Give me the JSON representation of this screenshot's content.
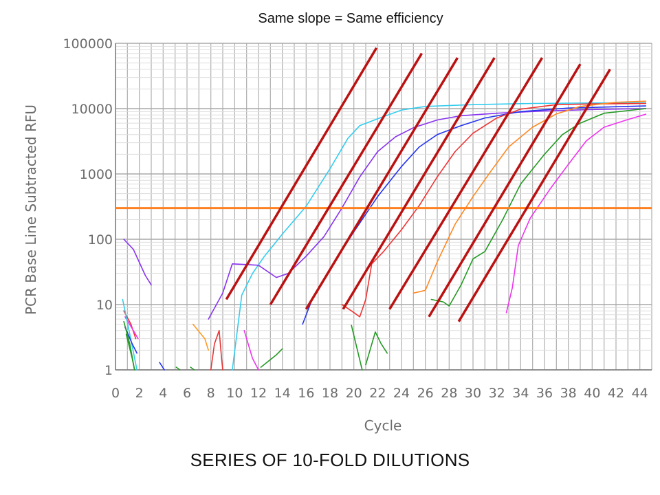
{
  "slide": {
    "title": "Same slope = Same efficiency",
    "caption": "SERIES OF 10-FOLD DILUTIONS"
  },
  "chart_data": {
    "type": "line",
    "title": "Same slope = Same efficiency",
    "xlabel": "Cycle",
    "ylabel": "PCR Base Line Subtracted RFU",
    "xlim": [
      0,
      45
    ],
    "ylim": [
      1,
      100000
    ],
    "yscale": "log",
    "grid": true,
    "x_ticks": [
      0,
      2,
      4,
      6,
      8,
      10,
      12,
      14,
      16,
      18,
      20,
      22,
      24,
      26,
      28,
      30,
      32,
      34,
      36,
      38,
      40,
      42,
      44
    ],
    "x_tick_labels": [
      "0",
      "2",
      "4",
      "6",
      "8",
      "10",
      "12",
      "14",
      "16",
      "18",
      "20",
      "22",
      "24",
      "26",
      "28",
      "30",
      "32",
      "34",
      "36",
      "38",
      "40",
      "42",
      "44"
    ],
    "y_ticks": [
      1,
      10,
      100,
      1000,
      10000,
      100000
    ],
    "y_tick_labels": [
      "1",
      "10",
      "100",
      "1000",
      "10000",
      "100000"
    ],
    "threshold": {
      "y": 300,
      "color": "#ff8020"
    },
    "series": [
      {
        "color": "#33ccee",
        "points": [
          [
            9.8,
            1
          ],
          [
            10.6,
            14
          ],
          [
            11.5,
            30
          ],
          [
            12.5,
            55
          ],
          [
            14,
            120
          ],
          [
            16,
            320
          ],
          [
            18,
            1200
          ],
          [
            19.5,
            3500
          ],
          [
            20.5,
            5500
          ],
          [
            22,
            7000
          ],
          [
            24,
            9500
          ],
          [
            26,
            10800
          ],
          [
            30,
            11500
          ],
          [
            35,
            12000
          ],
          [
            40,
            12200
          ],
          [
            44.5,
            12300
          ]
        ]
      },
      {
        "color": "#8833ee",
        "points": [
          [
            7.8,
            6
          ],
          [
            9,
            15
          ],
          [
            9.8,
            42
          ],
          [
            11,
            41
          ],
          [
            12,
            40
          ],
          [
            13.5,
            26
          ],
          [
            14.5,
            30
          ],
          [
            16,
            55
          ],
          [
            17.5,
            110
          ],
          [
            19,
            300
          ],
          [
            20.5,
            900
          ],
          [
            22,
            2200
          ],
          [
            23.5,
            3700
          ],
          [
            25,
            5100
          ],
          [
            27,
            6700
          ],
          [
            29,
            7800
          ],
          [
            32,
            8500
          ],
          [
            36,
            9200
          ],
          [
            40,
            9700
          ],
          [
            44.5,
            10000
          ]
        ]
      },
      {
        "color": "#2233ee",
        "points": [
          [
            15.7,
            5
          ],
          [
            16.5,
            12
          ],
          [
            18,
            35
          ],
          [
            20,
            130
          ],
          [
            22,
            450
          ],
          [
            24,
            1300
          ],
          [
            25.5,
            2600
          ],
          [
            27,
            4000
          ],
          [
            29,
            5500
          ],
          [
            31,
            7200
          ],
          [
            34,
            9000
          ],
          [
            38,
            10200
          ],
          [
            44.5,
            11000
          ]
        ]
      },
      {
        "color": "#ee3333",
        "points": [
          [
            19,
            10
          ],
          [
            19.8,
            8
          ],
          [
            20.5,
            6.5
          ],
          [
            21,
            12
          ],
          [
            21.5,
            42
          ],
          [
            22.5,
            65
          ],
          [
            24,
            140
          ],
          [
            25.5,
            330
          ],
          [
            27,
            900
          ],
          [
            28.5,
            2200
          ],
          [
            30,
            4200
          ],
          [
            32,
            7200
          ],
          [
            34,
            9800
          ],
          [
            37,
            11500
          ],
          [
            40,
            11800
          ],
          [
            44.5,
            12000
          ]
        ]
      },
      {
        "color": "#ff8822",
        "points": [
          [
            25,
            15
          ],
          [
            26,
            16.5
          ],
          [
            27,
            45
          ],
          [
            28.5,
            170
          ],
          [
            30,
            450
          ],
          [
            31.5,
            1100
          ],
          [
            33,
            2600
          ],
          [
            35,
            5200
          ],
          [
            37,
            8300
          ],
          [
            39,
            10800
          ],
          [
            42,
            12500
          ],
          [
            44.5,
            13000
          ]
        ]
      },
      {
        "color": "#ff9922",
        "points": [
          [
            6.5,
            5
          ],
          [
            7.5,
            3
          ],
          [
            7.8,
            2
          ]
        ]
      },
      {
        "color": "#229922",
        "points": [
          [
            26.5,
            12
          ],
          [
            27.5,
            11
          ],
          [
            28,
            9.5
          ],
          [
            29,
            20
          ],
          [
            30,
            50
          ],
          [
            31,
            65
          ],
          [
            32.5,
            200
          ],
          [
            34,
            700
          ],
          [
            36,
            2000
          ],
          [
            37.5,
            4000
          ],
          [
            39,
            6000
          ],
          [
            41,
            8500
          ],
          [
            44.5,
            10000
          ]
        ]
      },
      {
        "color": "#ee33ee",
        "points": [
          [
            32.8,
            7.5
          ],
          [
            33.3,
            18
          ],
          [
            33.8,
            80
          ],
          [
            34.8,
            210
          ],
          [
            36.5,
            600
          ],
          [
            38,
            1400
          ],
          [
            39.5,
            3200
          ],
          [
            41,
            5200
          ],
          [
            43,
            6800
          ],
          [
            44.5,
            8200
          ]
        ]
      },
      {
        "color": "#8833ee",
        "points": [
          [
            0.7,
            100
          ],
          [
            1.5,
            70
          ],
          [
            2.5,
            28
          ],
          [
            3,
            20
          ]
        ]
      },
      {
        "color": "#ee3333",
        "points": [
          [
            0.7,
            8
          ],
          [
            1.3,
            5
          ],
          [
            1.7,
            3
          ]
        ]
      },
      {
        "color": "#ee33ee",
        "points": [
          [
            0.8,
            6.5
          ],
          [
            1.5,
            4
          ],
          [
            1.9,
            3
          ]
        ]
      },
      {
        "color": "#33ccee",
        "points": [
          [
            0.6,
            12
          ],
          [
            1.2,
            3.5
          ],
          [
            1.8,
            1
          ]
        ]
      },
      {
        "color": "#2233ee",
        "points": [
          [
            0.8,
            4.5
          ],
          [
            1.4,
            2.5
          ],
          [
            1.8,
            1.8
          ]
        ]
      },
      {
        "color": "#229922",
        "points": [
          [
            0.7,
            5.5
          ],
          [
            1.2,
            2.5
          ],
          [
            1.6,
            1
          ]
        ]
      },
      {
        "color": "#229922",
        "points": [
          [
            0.9,
            3.5
          ],
          [
            1.4,
            1.5
          ],
          [
            1.6,
            1
          ]
        ]
      },
      {
        "color": "#2233ee",
        "points": [
          [
            3.7,
            1.3
          ],
          [
            4.1,
            1
          ]
        ]
      },
      {
        "color": "#229922",
        "points": [
          [
            5.1,
            1.1
          ],
          [
            5.4,
            1
          ]
        ]
      },
      {
        "color": "#229922",
        "points": [
          [
            6.3,
            1.1
          ],
          [
            6.6,
            1
          ]
        ]
      },
      {
        "color": "#ee3333",
        "points": [
          [
            8,
            1
          ],
          [
            8.3,
            2.5
          ],
          [
            8.7,
            4
          ],
          [
            8.9,
            1.5
          ],
          [
            9,
            1
          ]
        ]
      },
      {
        "color": "#ee33ee",
        "points": [
          [
            10.8,
            4
          ],
          [
            11.5,
            1.5
          ],
          [
            12,
            1
          ]
        ]
      },
      {
        "color": "#229922",
        "points": [
          [
            12.2,
            1.1
          ],
          [
            13.5,
            1.7
          ],
          [
            14,
            2.1
          ]
        ]
      },
      {
        "color": "#229922",
        "points": [
          [
            19.8,
            4.8
          ],
          [
            20.3,
            2
          ],
          [
            20.7,
            1
          ]
        ]
      },
      {
        "color": "#229922",
        "points": [
          [
            21,
            1.2
          ],
          [
            21.8,
            3.8
          ],
          [
            22.3,
            2.5
          ],
          [
            22.8,
            1.8
          ]
        ]
      }
    ],
    "slope_lines": {
      "color": "#bb1111",
      "lines": [
        [
          [
            9.3,
            12
          ],
          [
            21.9,
            85000
          ]
        ],
        [
          [
            13,
            10
          ],
          [
            25.7,
            70000
          ]
        ],
        [
          [
            16,
            8.5
          ],
          [
            28.7,
            60000
          ]
        ],
        [
          [
            19.1,
            8.5
          ],
          [
            31.8,
            60000
          ]
        ],
        [
          [
            23,
            8.5
          ],
          [
            35.8,
            60000
          ]
        ],
        [
          [
            26.3,
            6.5
          ],
          [
            39,
            48000
          ]
        ],
        [
          [
            28.8,
            5.5
          ],
          [
            41.5,
            40000
          ]
        ]
      ]
    }
  }
}
